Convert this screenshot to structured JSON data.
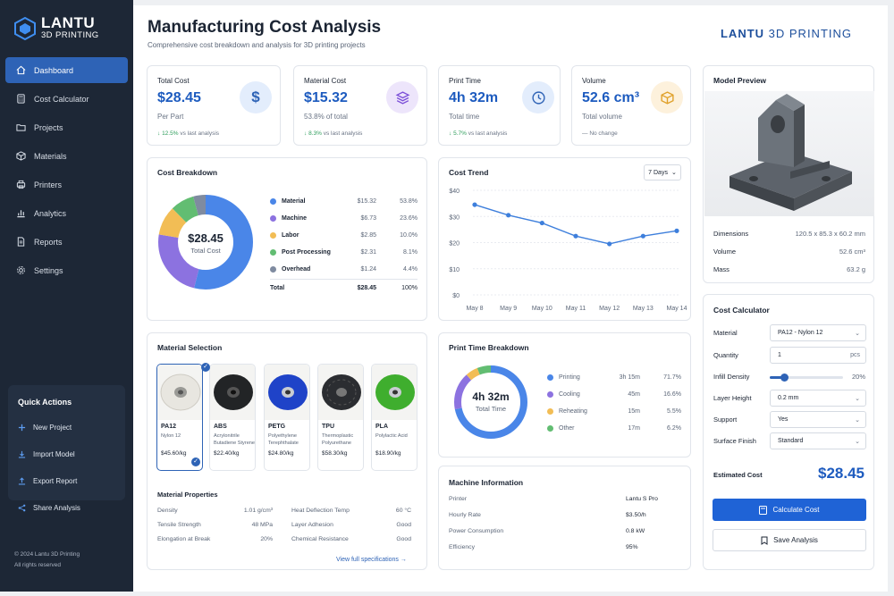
{
  "brand": {
    "name_line1": "LANTU",
    "name_line2": "3D PRINTING",
    "header_bold": "LANTU",
    "header_rest": "3D PRINTING"
  },
  "sidebar": {
    "items": [
      {
        "label": "Dashboard",
        "icon": "home-icon",
        "active": true
      },
      {
        "label": "Cost Calculator",
        "icon": "calculator-icon"
      },
      {
        "label": "Projects",
        "icon": "folder-icon"
      },
      {
        "label": "Materials",
        "icon": "cube-icon"
      },
      {
        "label": "Printers",
        "icon": "printer-icon"
      },
      {
        "label": "Analytics",
        "icon": "bar-chart-icon"
      },
      {
        "label": "Reports",
        "icon": "document-icon"
      },
      {
        "label": "Settings",
        "icon": "gear-icon"
      }
    ],
    "quick_actions": {
      "title": "Quick Actions",
      "items": [
        {
          "label": "New Project",
          "icon": "plus-icon"
        },
        {
          "label": "Import Model",
          "icon": "import-icon"
        },
        {
          "label": "Export Report",
          "icon": "export-icon"
        },
        {
          "label": "Share Analysis",
          "icon": "share-icon"
        }
      ]
    },
    "copyright": "© 2024 Lantu 3D Printing",
    "rights": "All rights reserved"
  },
  "header": {
    "title": "Manufacturing Cost Analysis",
    "subtitle": "Comprehensive cost breakdown and analysis for 3D printing projects"
  },
  "kpis": [
    {
      "label": "Total Cost",
      "value": "$28.45",
      "sub": "Per Part",
      "delta": "12.5%",
      "delta_text": "vs last analysis",
      "icon": "dollar-icon"
    },
    {
      "label": "Material Cost",
      "value": "$15.32",
      "sub": "53.8% of total",
      "delta": "8.3%",
      "delta_text": "vs last analysis",
      "icon": "layers-icon"
    },
    {
      "label": "Print Time",
      "value": "4h 32m",
      "sub": "Total time",
      "delta": "5.7%",
      "delta_text": "vs last analysis",
      "icon": "clock-icon"
    },
    {
      "label": "Volume",
      "value": "52.6 cm³",
      "sub": "Total volume",
      "delta": "",
      "delta_text": "No change",
      "icon": "box-icon"
    }
  ],
  "cost_breakdown": {
    "title": "Cost Breakdown",
    "center_value": "$28.45",
    "center_label": "Total Cost",
    "rows": [
      {
        "name": "Material",
        "amount": "$15.32",
        "pct": "53.8%",
        "value": 53.8,
        "color": "#4a86e8"
      },
      {
        "name": "Machine",
        "amount": "$6.73",
        "pct": "23.6%",
        "value": 23.6,
        "color": "#8c72e0"
      },
      {
        "name": "Labor",
        "amount": "$2.85",
        "pct": "10.0%",
        "value": 10.0,
        "color": "#f2bd55"
      },
      {
        "name": "Post Processing",
        "amount": "$2.31",
        "pct": "8.1%",
        "value": 8.1,
        "color": "#62bd72"
      },
      {
        "name": "Overhead",
        "amount": "$1.24",
        "pct": "4.4%",
        "value": 4.4,
        "color": "#7f8ba0"
      }
    ],
    "total_label": "Total",
    "total_amount": "$28.45",
    "total_pct": "100%"
  },
  "chart_data": {
    "type": "line",
    "title": "Cost Trend",
    "categories": [
      "May 8",
      "May 9",
      "May 10",
      "May 11",
      "May 12",
      "May 13",
      "May 14"
    ],
    "values": [
      34.5,
      30.5,
      27.5,
      22.5,
      19.5,
      22.5,
      24.5
    ],
    "y_ticks": [
      "$0",
      "$10",
      "$20",
      "$30",
      "$40"
    ],
    "ylim": [
      0,
      40
    ],
    "color": "#3e7fdc",
    "range_label": "7 Days"
  },
  "model_preview": {
    "title": "Model Preview",
    "rows": [
      {
        "label": "Dimensions",
        "value": "120.5 x 85.3 x 60.2 mm"
      },
      {
        "label": "Volume",
        "value": "52.6 cm³"
      },
      {
        "label": "Mass",
        "value": "63.2 g"
      }
    ]
  },
  "material_selection": {
    "title": "Material Selection",
    "materials": [
      {
        "name": "PA12",
        "desc": "Nylon 12",
        "price": "$45.60/kg",
        "color": "#e8e6e0",
        "selected": true
      },
      {
        "name": "ABS",
        "desc": "Acrylonitrile Butadiene Styrene",
        "price": "$22.40/kg",
        "color": "#222426"
      },
      {
        "name": "PETG",
        "desc": "Polyethylene Terephthalate",
        "price": "$24.80/kg",
        "color": "#1f43c8"
      },
      {
        "name": "TPU",
        "desc": "Thermoplastic Polyurethane",
        "price": "$58.30/kg",
        "color": "#2b2d31"
      },
      {
        "name": "PLA",
        "desc": "Polylactic Acid",
        "price": "$18.90/kg",
        "color": "#3fae2e"
      }
    ],
    "props_title": "Material Properties",
    "props_left": [
      {
        "label": "Density",
        "value": "1.01 g/cm³"
      },
      {
        "label": "Tensile Strength",
        "value": "48 MPa"
      },
      {
        "label": "Elongation at Break",
        "value": "20%"
      }
    ],
    "props_right": [
      {
        "label": "Heat Deflection Temp",
        "value": "60 °C"
      },
      {
        "label": "Layer Adhesion",
        "value": "Good"
      },
      {
        "label": "Chemical Resistance",
        "value": "Good"
      }
    ],
    "link": "View full specifications"
  },
  "print_time": {
    "title": "Print Time Breakdown",
    "center_value": "4h 32m",
    "center_label": "Total Time",
    "rows": [
      {
        "name": "Printing",
        "time": "3h 15m",
        "pct": "71.7%",
        "value": 71.7,
        "color": "#4a86e8"
      },
      {
        "name": "Cooling",
        "time": "45m",
        "pct": "16.6%",
        "value": 16.6,
        "color": "#8c72e0"
      },
      {
        "name": "Reheating",
        "time": "15m",
        "pct": "5.5%",
        "value": 5.5,
        "color": "#f2bd55"
      },
      {
        "name": "Other",
        "time": "17m",
        "pct": "6.2%",
        "value": 6.2,
        "color": "#62bd72"
      }
    ]
  },
  "machine": {
    "title": "Machine Information",
    "rows": [
      {
        "label": "Printer",
        "value": "Lantu S Pro"
      },
      {
        "label": "Hourly Rate",
        "value": "$3.50/h"
      },
      {
        "label": "Power Consumption",
        "value": "0.8 kW"
      },
      {
        "label": "Efficiency",
        "value": "95%"
      }
    ]
  },
  "calculator": {
    "title": "Cost Calculator",
    "material_label": "Material",
    "material_value": "PA12 - Nylon 12",
    "quantity_label": "Quantity",
    "quantity_value": "1",
    "quantity_unit": "pcs",
    "infill_label": "Infill Density",
    "infill_value": "20%",
    "infill_level": 0.2,
    "layer_label": "Layer Height",
    "layer_value": "0.2 mm",
    "support_label": "Support",
    "support_value": "Yes",
    "finish_label": "Surface Finish",
    "finish_value": "Standard",
    "estimated_label": "Estimated Cost",
    "estimated_value": "$28.45",
    "calculate_btn": "Calculate Cost",
    "save_btn": "Save Analysis"
  }
}
